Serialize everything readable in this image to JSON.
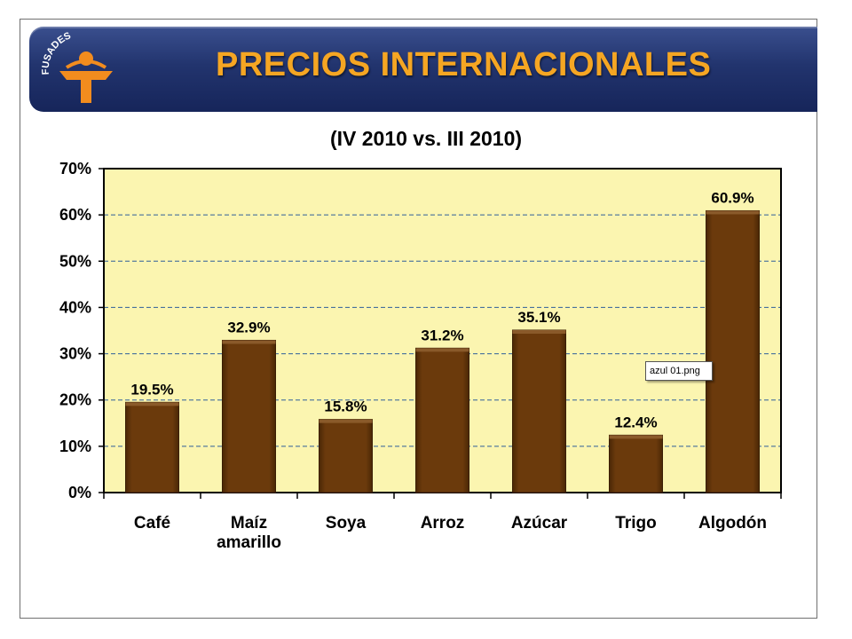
{
  "slide": {
    "title": "PRECIOS INTERNACIONALES",
    "logo_text": "FUSADES",
    "tooltip": "azul 01.png"
  },
  "colors": {
    "banner": "#22346e",
    "title": "#f5a623",
    "bar": "#6b3a0c",
    "plot_bg": "#fbf5b0",
    "grid": "#2f5f9a"
  },
  "chart_data": {
    "type": "bar",
    "title": "(IV 2010 vs. III 2010)",
    "categories": [
      [
        "Café"
      ],
      [
        "Maíz",
        "amarillo"
      ],
      [
        "Soya"
      ],
      [
        "Arroz"
      ],
      [
        "Azúcar"
      ],
      [
        "Trigo"
      ],
      [
        "Algodón"
      ]
    ],
    "values": [
      19.5,
      32.9,
      15.8,
      31.2,
      35.1,
      12.4,
      60.9
    ],
    "data_labels": [
      "19.5%",
      "32.9%",
      "15.8%",
      "31.2%",
      "35.1%",
      "12.4%",
      "60.9%"
    ],
    "ylim": [
      0,
      70
    ],
    "yticks": [
      0,
      10,
      20,
      30,
      40,
      50,
      60,
      70
    ],
    "ytick_labels": [
      "0%",
      "10%",
      "20%",
      "30%",
      "40%",
      "50%",
      "60%",
      "70%"
    ],
    "grid": true,
    "legend": "none"
  }
}
